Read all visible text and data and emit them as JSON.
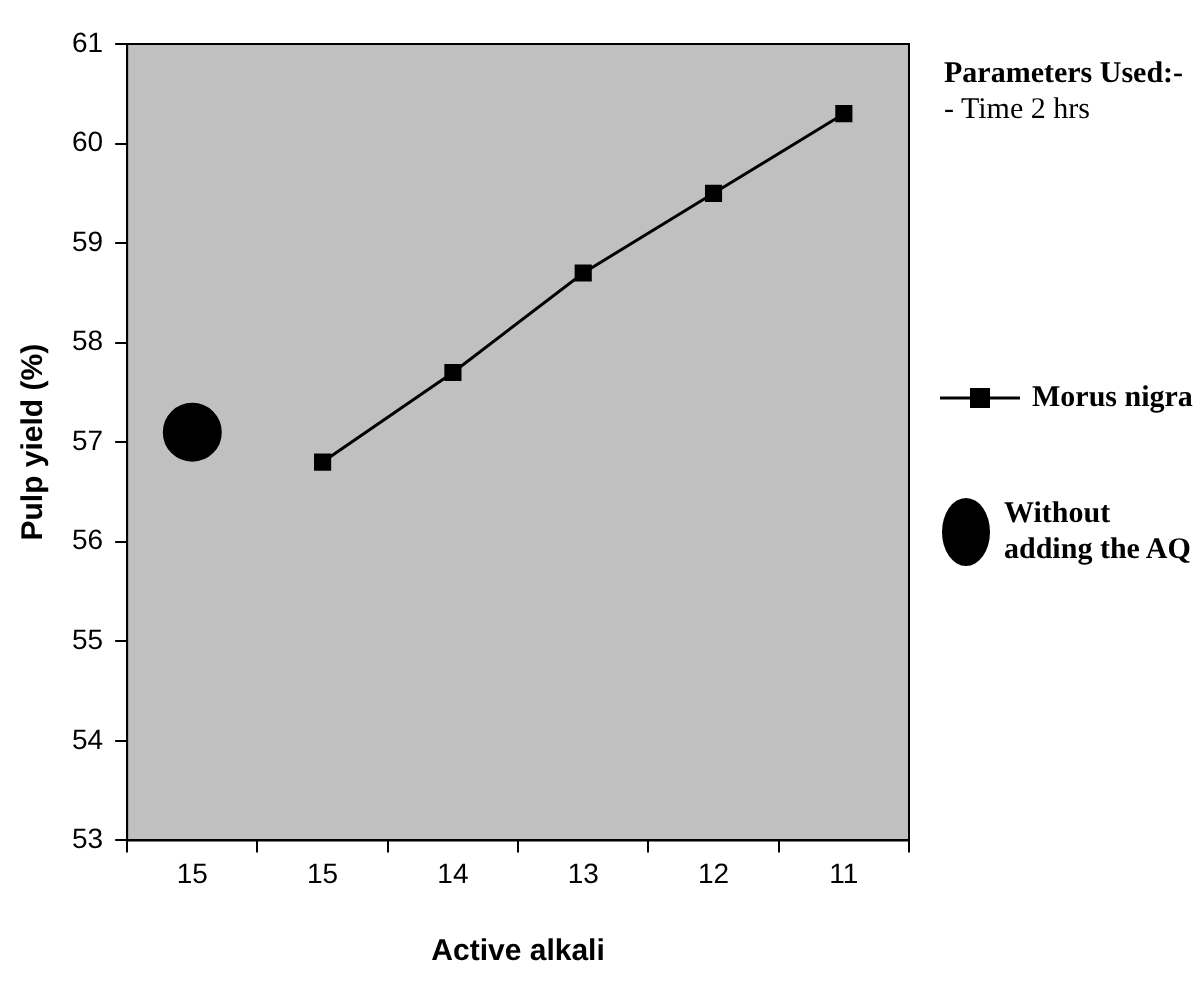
{
  "chart_data": {
    "type": "line",
    "xlabel": "Active alkali",
    "ylabel": "Pulp yield (%)",
    "categories": [
      "15",
      "15",
      "14",
      "13",
      "12",
      "11"
    ],
    "series": [
      {
        "name": "Morus nigra",
        "marker": "square",
        "color": "#000000",
        "values": [
          null,
          56.8,
          57.7,
          58.7,
          59.5,
          60.3
        ]
      },
      {
        "name": "Without adding the AQ",
        "type": "scatter",
        "marker": "circle",
        "color": "#000000",
        "values": [
          57.1,
          null,
          null,
          null,
          null,
          null
        ]
      }
    ],
    "ylim": [
      53,
      61
    ],
    "yticks": [
      53,
      54,
      55,
      56,
      57,
      58,
      59,
      60,
      61
    ],
    "grid": false,
    "legend": "right",
    "annotations": [
      "Parameters Used:-",
      "- Time 2 hrs"
    ]
  }
}
